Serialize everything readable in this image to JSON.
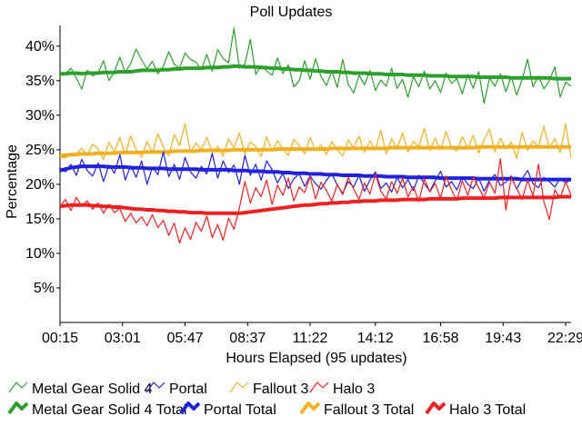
{
  "chart_data": {
    "type": "line",
    "title": "Poll Updates",
    "xlabel": "Hours Elapsed (95 updates)",
    "ylabel": "Percentage",
    "x_ticks": [
      "00:15",
      "03:01",
      "05:47",
      "08:37",
      "11:22",
      "14:12",
      "16:58",
      "19:43",
      "22:29"
    ],
    "y_ticks": [
      "5%",
      "10%",
      "15%",
      "20%",
      "25%",
      "30%",
      "35%",
      "40%"
    ],
    "ylim": [
      0,
      43
    ],
    "num_updates": 95,
    "series": [
      {
        "name": "Metal Gear Solid 4",
        "color": "#2ca02c",
        "style": "thin",
        "values": [
          36.2,
          36.0,
          36.8,
          35.4,
          33.8,
          36.5,
          35.7,
          36.1,
          37.9,
          35.0,
          36.3,
          38.4,
          36.2,
          37.5,
          39.6,
          38.0,
          36.7,
          37.8,
          36.0,
          37.1,
          39.2,
          37.4,
          36.8,
          39.0,
          38.1,
          37.7,
          36.6,
          38.8,
          36.4,
          39.5,
          38.2,
          37.6,
          42.6,
          36.8,
          37.4,
          41.0,
          35.9,
          37.2,
          36.4,
          35.8,
          38.3,
          36.0,
          37.3,
          34.1,
          35.0,
          37.9,
          35.2,
          38.2,
          35.6,
          34.3,
          36.4,
          34.0,
          38.1,
          34.5,
          33.2,
          35.8,
          34.4,
          36.5,
          33.6,
          35.1,
          34.2,
          36.8,
          33.9,
          35.2,
          32.6,
          35.6,
          34.1,
          36.4,
          33.8,
          35.0,
          33.3,
          36.1,
          34.6,
          35.3,
          33.1,
          35.9,
          33.9,
          36.3,
          31.7,
          35.4,
          34.2,
          36.0,
          33.4,
          35.6,
          32.9,
          35.2,
          38.1,
          34.1,
          35.7,
          33.8,
          35.0,
          37.0,
          32.6,
          34.8,
          34.2
        ]
      },
      {
        "name": "Portal",
        "color": "#2020e0",
        "style": "thin",
        "values": [
          22.4,
          21.8,
          22.9,
          21.3,
          23.6,
          22.0,
          21.2,
          23.1,
          20.4,
          22.8,
          21.6,
          24.3,
          20.6,
          22.7,
          21.0,
          23.4,
          20.0,
          22.5,
          21.4,
          24.7,
          21.1,
          22.9,
          20.7,
          23.9,
          21.8,
          20.9,
          22.6,
          21.5,
          24.5,
          20.9,
          23.4,
          21.7,
          22.8,
          20.0,
          24.2,
          21.3,
          22.9,
          20.6,
          23.4,
          22.1,
          20.2,
          21.6,
          19.4,
          20.8,
          21.5,
          19.7,
          21.2,
          20.1,
          19.3,
          20.6,
          21.5,
          19.9,
          18.7,
          20.4,
          19.6,
          21.3,
          19.0,
          20.6,
          21.8,
          19.4,
          20.2,
          18.9,
          21.0,
          19.5,
          20.7,
          19.1,
          21.3,
          20.1,
          19.0,
          20.5,
          21.9,
          19.6,
          20.4,
          19.2,
          21.1,
          20.0,
          19.4,
          20.9,
          19.0,
          20.6,
          21.4,
          19.8,
          20.3,
          21.2,
          19.3,
          20.8,
          22.0,
          20.1,
          19.5,
          21.0,
          20.4,
          19.6,
          20.9,
          20.2,
          20.7
        ]
      },
      {
        "name": "Fallout 3",
        "color": "#f0b020",
        "style": "thin",
        "values": [
          24.0,
          23.8,
          24.5,
          24.4,
          25.2,
          24.2,
          25.8,
          25.1,
          23.6,
          26.1,
          24.7,
          26.8,
          24.3,
          27.0,
          25.0,
          23.9,
          26.2,
          24.6,
          27.3,
          25.4,
          24.1,
          27.2,
          25.6,
          28.8,
          24.6,
          26.0,
          25.0,
          26.8,
          24.7,
          25.5,
          24.1,
          26.6,
          25.3,
          27.4,
          24.4,
          26.1,
          25.5,
          24.0,
          26.9,
          24.8,
          26.3,
          25.1,
          24.2,
          26.5,
          25.6,
          24.4,
          26.8,
          24.9,
          25.7,
          24.3,
          26.2,
          25.0,
          24.1,
          26.4,
          25.3,
          27.0,
          24.6,
          26.3,
          25.0,
          27.8,
          24.4,
          26.6,
          25.2,
          27.4,
          24.7,
          26.2,
          25.4,
          28.1,
          24.9,
          26.7,
          25.0,
          27.6,
          25.3,
          24.8,
          26.9,
          25.1,
          27.1,
          24.5,
          26.5,
          28.0,
          24.7,
          26.7,
          25.1,
          26.1,
          23.8,
          27.5,
          24.9,
          26.3,
          25.4,
          28.4,
          25.2,
          26.6,
          24.6,
          28.7,
          23.8
        ]
      },
      {
        "name": "Halo 3",
        "color": "#f02020",
        "style": "thin",
        "values": [
          16.8,
          17.8,
          16.2,
          18.1,
          16.9,
          17.6,
          16.4,
          17.3,
          15.8,
          17.1,
          15.9,
          16.5,
          14.6,
          15.8,
          14.4,
          15.3,
          14.0,
          15.6,
          13.7,
          14.8,
          12.6,
          14.4,
          11.5,
          13.7,
          12.0,
          14.5,
          13.2,
          15.4,
          12.3,
          14.2,
          11.9,
          15.1,
          13.5,
          16.6,
          20.4,
          17.3,
          19.5,
          18.2,
          20.6,
          17.1,
          19.9,
          18.4,
          20.9,
          17.6,
          19.6,
          18.8,
          21.1,
          17.9,
          20.3,
          19.1,
          17.6,
          20.0,
          18.5,
          21.0,
          19.3,
          17.8,
          20.2,
          18.6,
          21.5,
          19.0,
          17.9,
          20.4,
          18.7,
          20.9,
          18.2,
          19.7,
          17.5,
          20.8,
          18.9,
          20.1,
          18.0,
          21.2,
          19.2,
          17.7,
          20.5,
          18.4,
          21.0,
          19.5,
          18.1,
          20.3,
          18.7,
          23.7,
          16.3,
          21.0,
          19.4,
          17.8,
          20.6,
          18.3,
          22.9,
          17.5,
          14.9,
          19.2,
          18.0,
          20.4,
          18.4
        ]
      },
      {
        "name": "Metal Gear Solid 4 Total",
        "color": "#2ca02c",
        "style": "thick",
        "values": [
          36.0,
          36.0,
          36.1,
          36.1,
          36.0,
          36.1,
          36.1,
          36.1,
          36.2,
          36.2,
          36.2,
          36.3,
          36.3,
          36.3,
          36.4,
          36.5,
          36.5,
          36.5,
          36.5,
          36.6,
          36.6,
          36.7,
          36.7,
          36.8,
          36.8,
          36.8,
          36.8,
          36.9,
          36.9,
          36.9,
          37.0,
          37.0,
          37.1,
          37.1,
          37.0,
          37.0,
          37.0,
          36.9,
          36.9,
          36.8,
          36.8,
          36.7,
          36.7,
          36.6,
          36.6,
          36.5,
          36.5,
          36.4,
          36.4,
          36.3,
          36.3,
          36.3,
          36.2,
          36.2,
          36.1,
          36.1,
          36.1,
          36.0,
          36.0,
          36.0,
          35.9,
          35.9,
          35.9,
          35.9,
          35.8,
          35.8,
          35.8,
          35.8,
          35.7,
          35.7,
          35.7,
          35.7,
          35.6,
          35.6,
          35.6,
          35.6,
          35.6,
          35.5,
          35.5,
          35.5,
          35.5,
          35.5,
          35.5,
          35.4,
          35.4,
          35.4,
          35.4,
          35.4,
          35.4,
          35.4,
          35.4,
          35.3,
          35.3,
          35.3,
          35.3
        ]
      },
      {
        "name": "Portal Total",
        "color": "#2020e0",
        "style": "thick",
        "values": [
          22.0,
          22.2,
          22.4,
          22.5,
          22.6,
          22.6,
          22.6,
          22.6,
          22.6,
          22.5,
          22.5,
          22.5,
          22.5,
          22.4,
          22.4,
          22.4,
          22.3,
          22.3,
          22.3,
          22.3,
          22.2,
          22.2,
          22.2,
          22.2,
          22.2,
          22.2,
          22.1,
          22.1,
          22.1,
          22.1,
          22.1,
          22.1,
          22.0,
          22.0,
          22.0,
          21.9,
          21.9,
          21.9,
          21.8,
          21.8,
          21.8,
          21.7,
          21.7,
          21.6,
          21.6,
          21.6,
          21.5,
          21.5,
          21.5,
          21.4,
          21.4,
          21.4,
          21.3,
          21.3,
          21.3,
          21.3,
          21.2,
          21.2,
          21.2,
          21.2,
          21.1,
          21.1,
          21.1,
          21.1,
          21.0,
          21.0,
          21.0,
          21.0,
          21.0,
          21.0,
          20.9,
          20.9,
          20.9,
          20.9,
          20.9,
          20.9,
          20.9,
          20.8,
          20.8,
          20.8,
          20.8,
          20.8,
          20.8,
          20.8,
          20.8,
          20.7,
          20.7,
          20.7,
          20.7,
          20.7,
          20.7,
          20.7,
          20.7,
          20.7,
          20.7
        ]
      },
      {
        "name": "Fallout 3 Total",
        "color": "#f0b020",
        "style": "thick",
        "values": [
          24.2,
          24.2,
          24.3,
          24.3,
          24.4,
          24.4,
          24.4,
          24.5,
          24.5,
          24.5,
          24.5,
          24.6,
          24.6,
          24.6,
          24.6,
          24.6,
          24.7,
          24.7,
          24.7,
          24.7,
          24.7,
          24.8,
          24.8,
          24.8,
          24.8,
          24.8,
          24.9,
          24.9,
          24.9,
          24.9,
          24.9,
          24.9,
          25.0,
          25.0,
          25.0,
          25.0,
          25.0,
          25.0,
          25.0,
          25.0,
          25.1,
          25.1,
          25.1,
          25.1,
          25.1,
          25.1,
          25.1,
          25.1,
          25.1,
          25.1,
          25.2,
          25.2,
          25.2,
          25.2,
          25.2,
          25.2,
          25.2,
          25.2,
          25.2,
          25.2,
          25.2,
          25.3,
          25.3,
          25.3,
          25.3,
          25.3,
          25.3,
          25.3,
          25.3,
          25.3,
          25.3,
          25.3,
          25.3,
          25.3,
          25.3,
          25.3,
          25.3,
          25.4,
          25.4,
          25.4,
          25.4,
          25.4,
          25.4,
          25.4,
          25.4,
          25.4,
          25.4,
          25.4,
          25.4,
          25.4,
          25.4,
          25.4,
          25.4,
          25.4,
          25.4
        ]
      },
      {
        "name": "Halo 3 Total",
        "color": "#f02020",
        "style": "thick",
        "values": [
          16.8,
          16.9,
          17.0,
          17.0,
          17.0,
          17.0,
          16.9,
          16.9,
          16.8,
          16.8,
          16.7,
          16.7,
          16.6,
          16.5,
          16.4,
          16.4,
          16.3,
          16.3,
          16.2,
          16.2,
          16.1,
          16.1,
          16.0,
          16.0,
          15.9,
          15.9,
          15.9,
          15.8,
          15.8,
          15.8,
          15.8,
          15.8,
          15.8,
          15.8,
          15.9,
          16.0,
          16.1,
          16.2,
          16.3,
          16.4,
          16.5,
          16.6,
          16.7,
          16.8,
          16.9,
          17.0,
          17.0,
          17.1,
          17.2,
          17.2,
          17.3,
          17.3,
          17.4,
          17.4,
          17.5,
          17.5,
          17.6,
          17.6,
          17.6,
          17.7,
          17.7,
          17.7,
          17.7,
          17.8,
          17.8,
          17.8,
          17.8,
          17.8,
          17.9,
          17.9,
          17.9,
          17.9,
          17.9,
          17.9,
          18.0,
          18.0,
          18.0,
          18.0,
          18.0,
          18.0,
          18.0,
          18.1,
          18.1,
          18.1,
          18.1,
          18.1,
          18.1,
          18.1,
          18.1,
          18.1,
          18.1,
          18.1,
          18.2,
          18.2,
          18.2
        ]
      }
    ],
    "legend_position": "bottom-left",
    "grid": false
  }
}
